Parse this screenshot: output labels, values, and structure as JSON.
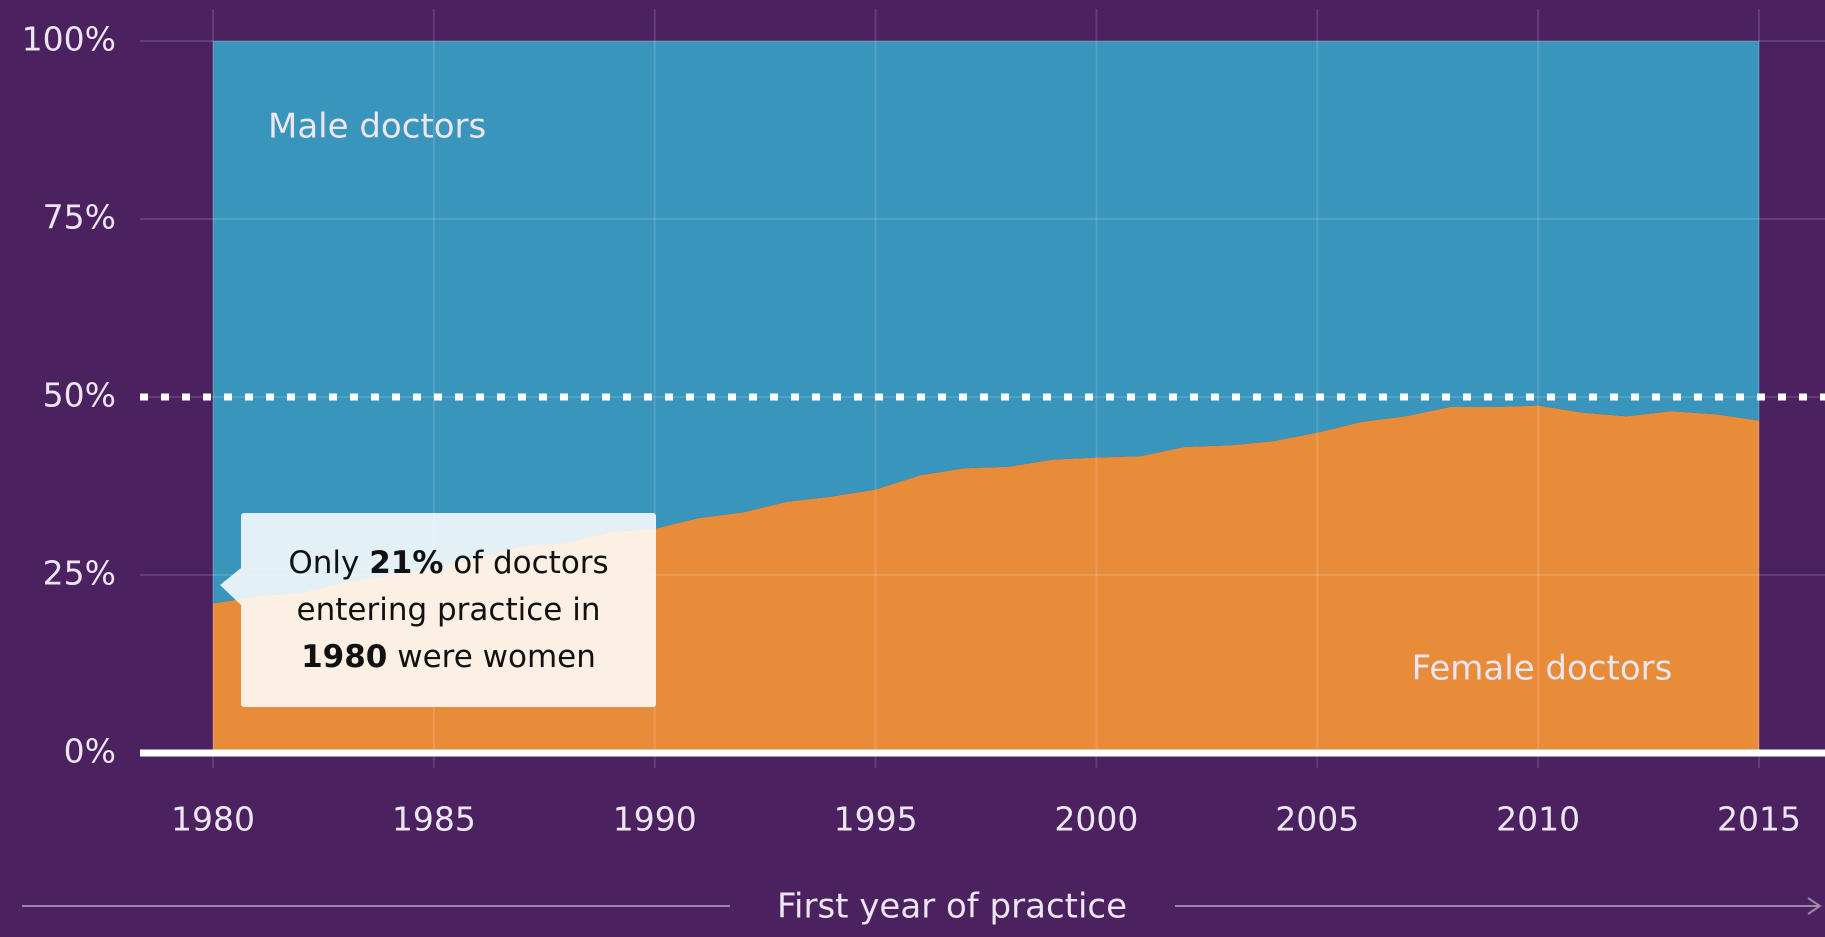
{
  "chart_data": {
    "type": "stacked_area",
    "x": [
      1980,
      1981,
      1982,
      1983,
      1984,
      1985,
      1986,
      1987,
      1988,
      1989,
      1990,
      1991,
      1992,
      1993,
      1994,
      1995,
      1996,
      1997,
      1998,
      1999,
      2000,
      2001,
      2002,
      2003,
      2004,
      2005,
      2006,
      2007,
      2008,
      2009,
      2010,
      2011,
      2012,
      2013,
      2014,
      2015
    ],
    "series": [
      {
        "name": "Female doctors",
        "color": "#e88c3a",
        "values": [
          21,
          22,
          22.5,
          24,
          25,
          26,
          27.5,
          29,
          29.5,
          31,
          31.5,
          33,
          33.8,
          35.3,
          36,
          37,
          39,
          40,
          40.2,
          41.2,
          41.5,
          41.7,
          43,
          43.2,
          43.8,
          45,
          46.5,
          47.3,
          48.6,
          48.6,
          48.8,
          47.8,
          47.3,
          48,
          47.6,
          46.7
        ]
      },
      {
        "name": "Male doctors",
        "color": "#3a95bc",
        "values": [
          79,
          78,
          77.5,
          76,
          75,
          74,
          72.5,
          71,
          70.5,
          69,
          68.5,
          67,
          66.2,
          64.7,
          64,
          63,
          61,
          60,
          59.8,
          58.8,
          58.5,
          58.3,
          57,
          56.8,
          56.2,
          55,
          53.5,
          52.7,
          51.4,
          51.4,
          51.2,
          52.2,
          52.7,
          52,
          52.4,
          53.3
        ]
      }
    ],
    "xlim": [
      1980,
      2015
    ],
    "xticks": [
      1980,
      1985,
      1990,
      1995,
      2000,
      2005,
      2010,
      2015
    ],
    "ylim": [
      0,
      100
    ],
    "yticks": [
      {
        "value": 0,
        "label": "0%"
      },
      {
        "value": 25,
        "label": "25%"
      },
      {
        "value": 50,
        "label": "50%"
      },
      {
        "value": 75,
        "label": "75%"
      },
      {
        "value": 100,
        "label": "100%"
      }
    ],
    "reference_line": 50,
    "grid": true,
    "x_label": "First year of practice",
    "annotation": {
      "lines": [
        [
          {
            "text": "Only "
          },
          {
            "text": "21%",
            "bold": true
          },
          {
            "text": " of doctors"
          }
        ],
        [
          {
            "text": "entering practice in"
          }
        ],
        [
          {
            "text": "1980",
            "bold": true
          },
          {
            "text": " were women"
          }
        ]
      ]
    }
  }
}
